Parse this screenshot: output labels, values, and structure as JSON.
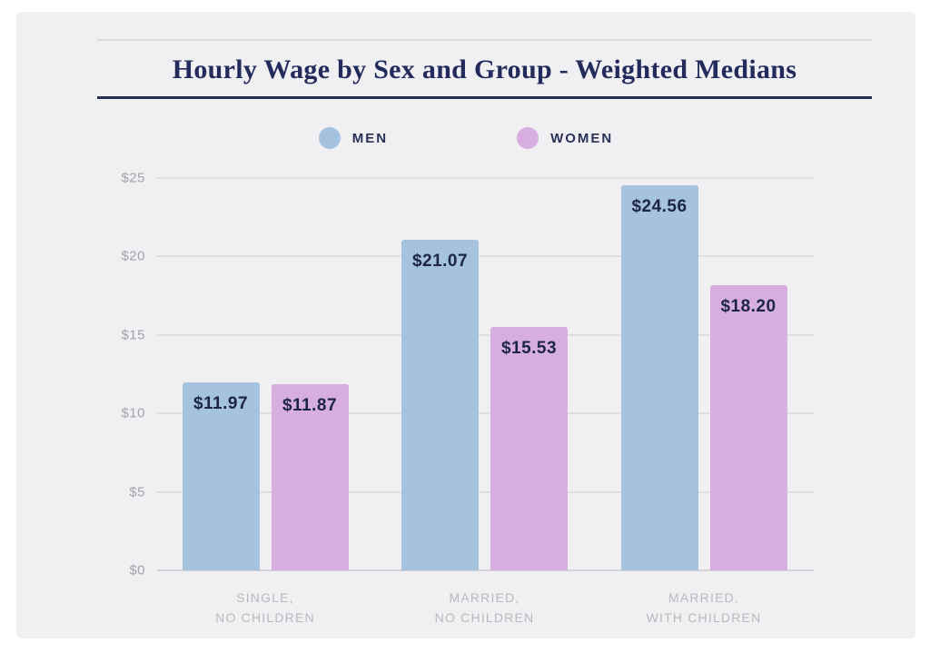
{
  "title": "Hourly Wage by Sex and Group - Weighted Medians",
  "legend": {
    "men": {
      "label": "MEN",
      "color": "#a5c3de"
    },
    "women": {
      "label": "WOMEN",
      "color": "#d7aee0"
    }
  },
  "chart_data": {
    "type": "bar",
    "title": "Hourly Wage by Sex and Group - Weighted Medians",
    "categories": [
      "SINGLE,\nNO CHILDREN",
      "MARRIED,\nNO CHILDREN",
      "MARRIED,\nWITH CHILDREN"
    ],
    "series": [
      {
        "name": "MEN",
        "color": "#a5c3de",
        "values": [
          11.97,
          21.07,
          24.56
        ]
      },
      {
        "name": "WOMEN",
        "color": "#d7aee0",
        "values": [
          11.87,
          15.53,
          18.2
        ]
      }
    ],
    "value_prefix": "$",
    "value_decimals": 2,
    "ylim": [
      0,
      25
    ],
    "yticks": [
      0,
      5,
      10,
      15,
      20,
      25
    ],
    "ytick_labels": [
      "$0",
      "$5",
      "$10",
      "$15",
      "$20",
      "$25"
    ],
    "grid": true,
    "legend_position": "top-center"
  },
  "colors": {
    "panel_bg": "#f0f0f2",
    "title_navy": "#232b5c",
    "rule_light": "#d9dadd",
    "rule_navy": "#272e58",
    "value_label": "#1d2449",
    "gridline": "#dfdfe3",
    "axis_label": "#a2a2aa",
    "category_label": "#b9b9bf"
  }
}
